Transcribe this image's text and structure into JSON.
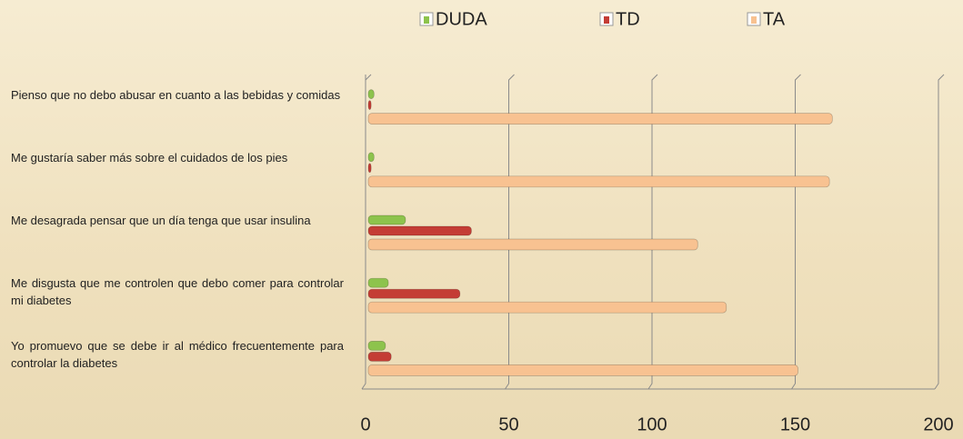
{
  "chart_data": {
    "type": "bar",
    "orientation": "horizontal",
    "categories": [
      "Pienso que no debo abusar en cuanto a las bebidas y comidas",
      "Me gustaría saber más sobre el cuidados de los pies",
      "Me desagrada pensar que un día tenga que usar insulina",
      "Me disgusta que me controlen que debo comer para controlar mi diabetes",
      "Yo promuevo que se debe ir al médico frecuentemente para controlar la diabetes"
    ],
    "series": [
      {
        "name": "DUDA",
        "color": "#8dc34c",
        "values": [
          2,
          2,
          13,
          7,
          6
        ]
      },
      {
        "name": "TD",
        "color": "#c43d35",
        "values": [
          1,
          1,
          36,
          32,
          8
        ]
      },
      {
        "name": "TA",
        "color": "#f8c291",
        "values": [
          162,
          161,
          115,
          125,
          150
        ]
      }
    ],
    "xlim": [
      0,
      200
    ],
    "xticks": [
      0,
      50,
      100,
      150,
      200
    ],
    "grid": true,
    "legend": "top"
  }
}
